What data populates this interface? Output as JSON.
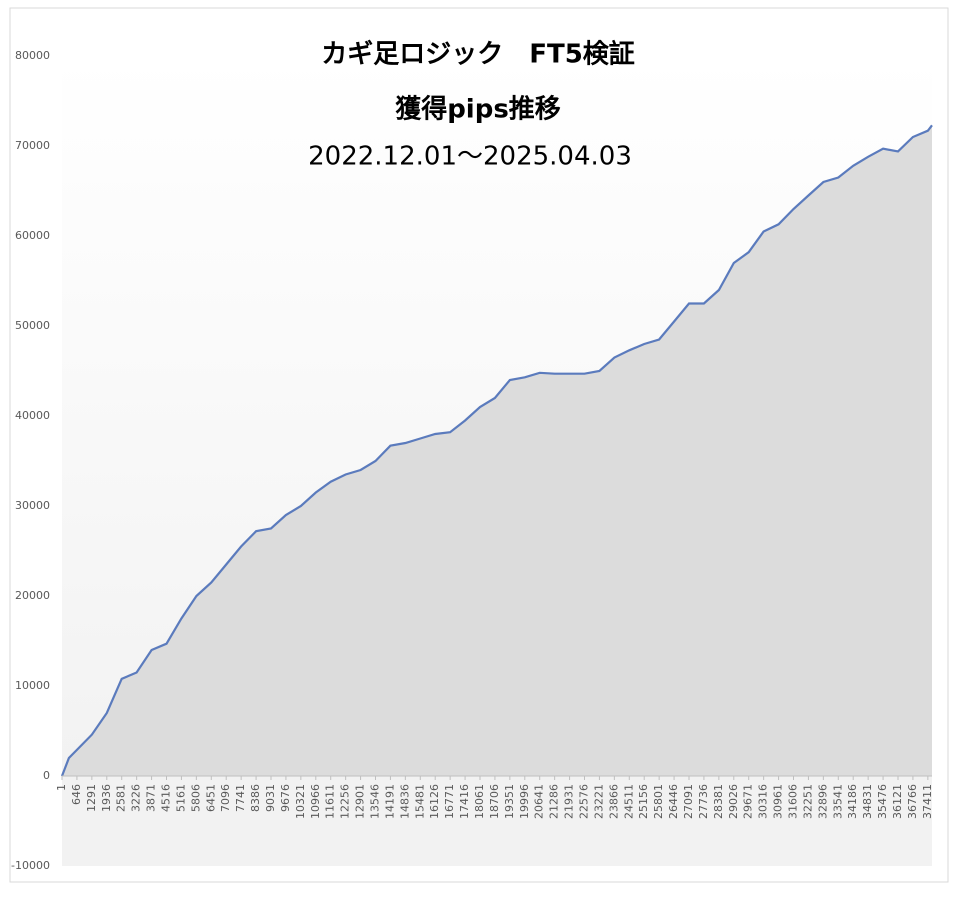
{
  "chart_data": {
    "type": "area",
    "title": "カギ足ロジック　FT5検証",
    "subtitle": "獲得pips推移",
    "date_range": "2022.12.01～2025.04.03",
    "color": "#5b7bbd",
    "fill_color": "#dcdcdc",
    "x": [
      1,
      300,
      646,
      1291,
      1936,
      2581,
      3226,
      3871,
      4516,
      5161,
      5806,
      6451,
      7096,
      7741,
      8386,
      9031,
      9676,
      10321,
      10966,
      11611,
      12256,
      12901,
      13546,
      14191,
      14836,
      15481,
      16126,
      16771,
      17416,
      18061,
      18706,
      19351,
      19996,
      20641,
      21286,
      21931,
      22576,
      23221,
      23866,
      24511,
      25156,
      25801,
      26446,
      27091,
      27736,
      28381,
      29026,
      29671,
      30316,
      30961,
      31606,
      32251,
      32896,
      33541,
      34186,
      34831,
      35476,
      36121,
      36766,
      37411,
      37590
    ],
    "values": [
      0,
      2000,
      2900,
      4600,
      7000,
      10800,
      11500,
      14000,
      14700,
      17500,
      20000,
      21500,
      23500,
      25500,
      27200,
      27500,
      29000,
      30000,
      31500,
      32700,
      33500,
      34000,
      35000,
      36700,
      37000,
      37500,
      38000,
      38200,
      39500,
      41000,
      42000,
      44000,
      44300,
      44800,
      44700,
      44700,
      44700,
      45000,
      46500,
      47300,
      48000,
      48500,
      50500,
      52500,
      52500,
      54000,
      57000,
      58200,
      60500,
      61300,
      63000,
      64500,
      66000,
      66500,
      67800,
      68800,
      69700,
      69400,
      71000,
      71700,
      72300
    ],
    "xlim": [
      1,
      37590
    ],
    "xticks": [
      1,
      646,
      1291,
      1936,
      2581,
      3226,
      3871,
      4516,
      5161,
      5806,
      6451,
      7096,
      7741,
      8386,
      9031,
      9676,
      10321,
      10966,
      11611,
      12256,
      12901,
      13546,
      14191,
      14836,
      15481,
      16126,
      16771,
      17416,
      18061,
      18706,
      19351,
      19996,
      20641,
      21286,
      21931,
      22576,
      23221,
      23866,
      24511,
      25156,
      25801,
      26446,
      27091,
      27736,
      28381,
      29026,
      29671,
      30316,
      30961,
      31606,
      32251,
      32896,
      33541,
      34186,
      34831,
      35476,
      36121,
      36766,
      37411
    ],
    "ylim": [
      -10000,
      80000
    ],
    "yticks": [
      -10000,
      0,
      10000,
      20000,
      30000,
      40000,
      50000,
      60000,
      70000,
      80000
    ]
  }
}
